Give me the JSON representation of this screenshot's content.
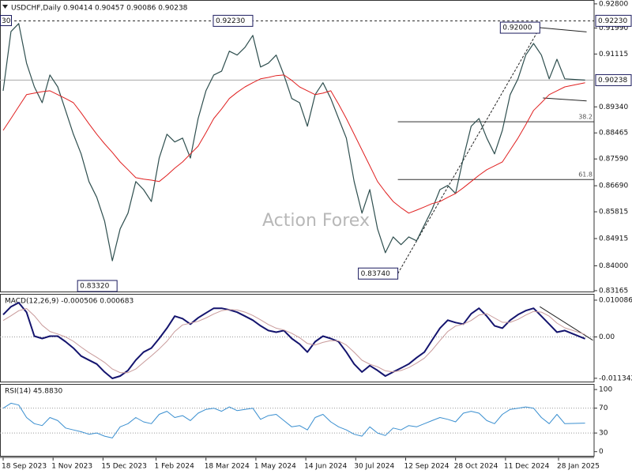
{
  "chart_data": {
    "type": "line",
    "title": "USDCHF,Daily  0.90414 0.90457 0.90086 0.90238",
    "corner_label": "30",
    "watermark": "Action Forex",
    "x": [
      "2023-09-18",
      "2023-09-25",
      "2023-10-02",
      "2023-10-09",
      "2023-10-16",
      "2023-10-23",
      "2023-10-30",
      "2023-11-06",
      "2023-11-13",
      "2023-11-20",
      "2023-11-27",
      "2023-12-04",
      "2023-12-11",
      "2023-12-18",
      "2023-12-25",
      "2024-01-01",
      "2024-01-08",
      "2024-01-15",
      "2024-01-22",
      "2024-01-29",
      "2024-02-05",
      "2024-02-12",
      "2024-02-19",
      "2024-02-26",
      "2024-03-04",
      "2024-03-11",
      "2024-03-18",
      "2024-03-25",
      "2024-04-01",
      "2024-04-08",
      "2024-04-15",
      "2024-04-22",
      "2024-04-29",
      "2024-05-06",
      "2024-05-13",
      "2024-05-20",
      "2024-05-27",
      "2024-06-03",
      "2024-06-10",
      "2024-06-17",
      "2024-06-24",
      "2024-07-01",
      "2024-07-08",
      "2024-07-15",
      "2024-07-22",
      "2024-07-29",
      "2024-08-05",
      "2024-08-12",
      "2024-08-19",
      "2024-08-26",
      "2024-09-02",
      "2024-09-09",
      "2024-09-16",
      "2024-09-23",
      "2024-09-30",
      "2024-10-07",
      "2024-10-14",
      "2024-10-21",
      "2024-10-28",
      "2024-11-04",
      "2024-11-11",
      "2024-11-18",
      "2024-11-25",
      "2024-12-02",
      "2024-12-09",
      "2024-12-16",
      "2024-12-23",
      "2024-12-30",
      "2025-01-06",
      "2025-01-13",
      "2025-01-20",
      "2025-01-27",
      "2025-02-03",
      "2025-02-20"
    ],
    "xticks": [
      {
        "value": "2023-09-18",
        "label": "18 Sep 2023"
      },
      {
        "value": "2023-11-01",
        "label": "1 Nov 2023"
      },
      {
        "value": "2023-12-15",
        "label": "15 Dec 2023"
      },
      {
        "value": "2024-02-01",
        "label": "1 Feb 2024"
      },
      {
        "value": "2024-03-18",
        "label": "18 Mar 2024"
      },
      {
        "value": "2024-05-01",
        "label": "1 May 2024"
      },
      {
        "value": "2024-06-14",
        "label": "14 Jun 2024"
      },
      {
        "value": "2024-07-30",
        "label": "30 Jul 2024"
      },
      {
        "value": "2024-09-12",
        "label": "12 Sep 2024"
      },
      {
        "value": "2024-10-28",
        "label": "28 Oct 2024"
      },
      {
        "value": "2024-12-11",
        "label": "11 Dec 2024"
      },
      {
        "value": "2025-01-28",
        "label": "28 Jan 2025"
      }
    ],
    "panels": [
      {
        "ylim": [
          0.8311,
          0.9293
        ],
        "yticks": [
          {
            "value": 0.928,
            "label": "0.92800"
          },
          {
            "value": 0.9199,
            "label": "0.91990"
          },
          {
            "value": 0.91115,
            "label": "0.91115"
          },
          {
            "value": 0.8934,
            "label": "0.89340"
          },
          {
            "value": 0.88465,
            "label": "0.88465"
          },
          {
            "value": 0.8759,
            "label": "0.87590"
          },
          {
            "value": 0.8669,
            "label": "0.86690"
          },
          {
            "value": 0.85815,
            "label": "0.85815"
          },
          {
            "value": 0.84915,
            "label": "0.84915"
          },
          {
            "value": 0.84,
            "label": "0.84000"
          },
          {
            "value": 0.83165,
            "label": "0.83165"
          }
        ],
        "series": [
          {
            "color": "#2f4f4f",
            "width": 1.2,
            "values": [
              0.8988,
              0.9187,
              0.9214,
              0.9081,
              0.9001,
              0.8948,
              0.9041,
              0.9001,
              0.8922,
              0.8842,
              0.8776,
              0.8683,
              0.863,
              0.855,
              0.8417,
              0.8524,
              0.8577,
              0.8683,
              0.8656,
              0.8616,
              0.8762,
              0.8842,
              0.8816,
              0.8829,
              0.8762,
              0.8895,
              0.8988,
              0.9041,
              0.9054,
              0.9121,
              0.9108,
              0.9134,
              0.9174,
              0.9068,
              0.9081,
              0.9108,
              0.9041,
              0.8962,
              0.8948,
              0.8869,
              0.8975,
              0.9015,
              0.8962,
              0.8895,
              0.8829,
              0.8683,
              0.8577,
              0.8656,
              0.8524,
              0.8444,
              0.8497,
              0.8471,
              0.8497,
              0.8484,
              0.8537,
              0.859,
              0.8656,
              0.867,
              0.8643,
              0.8762,
              0.8869,
              0.8895,
              0.8829,
              0.8776,
              0.8855,
              0.8975,
              0.9028,
              0.9108,
              0.9147,
              0.9108,
              0.9028,
              0.9094,
              0.9028,
              0.90238
            ]
          },
          {
            "color": "#e02020",
            "width": 1,
            "values": [
              0.8855,
              0.8895,
              0.8935,
              0.8975,
              0.898,
              0.8985,
              0.8988,
              0.8975,
              0.8962,
              0.8948,
              0.8914,
              0.8877,
              0.8842,
              0.881,
              0.8781,
              0.8749,
              0.8723,
              0.8696,
              0.8691,
              0.8688,
              0.8683,
              0.8704,
              0.8728,
              0.8749,
              0.8776,
              0.8802,
              0.8847,
              0.8895,
              0.8927,
              0.8962,
              0.8983,
              0.9001,
              0.9015,
              0.9028,
              0.9033,
              0.9039,
              0.9041,
              0.9023,
              0.9001,
              0.8988,
              0.8975,
              0.898,
              0.8988,
              0.8943,
              0.8895,
              0.8842,
              0.8789,
              0.8736,
              0.8683,
              0.8648,
              0.8616,
              0.8595,
              0.8577,
              0.8587,
              0.8598,
              0.8609,
              0.8616,
              0.863,
              0.8643,
              0.8662,
              0.8683,
              0.8704,
              0.8723,
              0.8736,
              0.8749,
              0.8789,
              0.8829,
              0.8874,
              0.8922,
              0.8948,
              0.8975,
              0.8988,
              0.9001,
              0.9015
            ]
          }
        ],
        "hlines": [
          {
            "value": 0.9223,
            "label": "0.92230",
            "style": "dashed"
          },
          {
            "value": 0.90238,
            "label": "0.90238",
            "style": "solid"
          }
        ],
        "fib_levels": [
          {
            "label": "38.2",
            "value": 0.8884,
            "from": "2024-09-05"
          },
          {
            "label": "61.8",
            "value": 0.869,
            "from": "2024-09-05"
          }
        ],
        "annotations": [
          {
            "label": "0.92230",
            "value": 0.9223,
            "x": "2024-04-29"
          },
          {
            "label": "0.83320",
            "value": 0.8332,
            "x": "2023-12-28"
          },
          {
            "label": "0.83740",
            "value": 0.8374,
            "x": "2024-09-05"
          },
          {
            "label": "0.92000",
            "value": 0.92,
            "x": "2025-01-10"
          }
        ],
        "trendlines": [
          {
            "x": [
              "2024-09-05",
              "2025-01-10"
            ],
            "values": [
              0.8374,
              0.92
            ],
            "style": "dashed"
          },
          {
            "x": [
              "2025-01-10",
              "2025-02-21"
            ],
            "values": [
              0.92,
              0.9186
            ],
            "style": "solid"
          },
          {
            "x": [
              "2025-01-14",
              "2025-02-21"
            ],
            "values": [
              0.8964,
              0.8954
            ],
            "style": "solid"
          }
        ]
      },
      {
        "title": "MACD(12,26,9) -0.000506 0.000683",
        "ylim": [
          -0.01246,
          0.01181
        ],
        "yticks": [
          0.010086,
          {
            "value": 0,
            "label": "0.00"
          },
          -0.011342
        ],
        "levels": [
          0
        ],
        "series": [
          {
            "color": "#14146e",
            "width": 2,
            "values": [
              0.00612,
              0.00831,
              0.0094,
              0.00678,
              0.00022,
              -0.00044,
              0.00022,
              0.00022,
              -0.00131,
              -0.00306,
              -0.00525,
              -0.00634,
              -0.00744,
              -0.00962,
              -0.01137,
              -0.01072,
              -0.00919,
              -0.00634,
              -0.00416,
              -0.00306,
              -0.00044,
              0.00241,
              0.00569,
              0.00503,
              0.0035,
              0.00525,
              0.00656,
              0.00787,
              0.00787,
              0.00744,
              0.00678,
              0.00569,
              0.00459,
              0.00306,
              0.00175,
              0.00131,
              0.00175,
              -0.00044,
              -0.00197,
              -0.00416,
              -0.00131,
              0.00022,
              -0.00044,
              -0.00131,
              -0.00416,
              -0.00744,
              -0.00962,
              -0.00787,
              -0.00919,
              -0.01072,
              -0.00962,
              -0.00853,
              -0.00744,
              -0.00569,
              -0.00416,
              -0.00087,
              0.00241,
              0.00459,
              0.00394,
              0.0035,
              0.00634,
              0.00787,
              0.00569,
              0.00306,
              0.00241,
              0.00459,
              0.00612,
              0.00722,
              0.00787,
              0.00569,
              0.0035,
              0.00131,
              0.00175,
              -0.000506
            ]
          },
          {
            "color": "#c89a9a",
            "width": 1,
            "values": [
              0.0045,
              0.0058,
              0.0072,
              0.0078,
              0.0058,
              0.0032,
              0.0015,
              0.0008,
              0.0,
              -0.0012,
              -0.0028,
              -0.0043,
              -0.0056,
              -0.007,
              -0.0088,
              -0.0098,
              -0.0098,
              -0.0088,
              -0.007,
              -0.0052,
              -0.0033,
              -0.0012,
              0.0015,
              0.0033,
              0.0038,
              0.0043,
              0.0052,
              0.0063,
              0.0072,
              0.0075,
              0.0074,
              0.0068,
              0.0059,
              0.0047,
              0.0034,
              0.0024,
              0.0019,
              0.001,
              -0.0002,
              -0.0018,
              -0.0022,
              -0.0015,
              -0.001,
              -0.0011,
              -0.0022,
              -0.0042,
              -0.0064,
              -0.0075,
              -0.0082,
              -0.0093,
              -0.0096,
              -0.0092,
              -0.0084,
              -0.0072,
              -0.0058,
              -0.0036,
              -0.001,
              0.0015,
              0.003,
              0.0035,
              0.0045,
              0.006,
              0.0064,
              0.0052,
              0.004,
              0.004,
              0.0048,
              0.006,
              0.007,
              0.0068,
              0.0057,
              0.0038,
              0.0025,
              0.000683
            ]
          }
        ],
        "trendlines": [
          {
            "x": [
              "2025-01-10",
              "2025-02-27"
            ],
            "values": [
              0.0083,
              -0.0009
            ],
            "style": "solid"
          }
        ]
      },
      {
        "title": "RSI(14) 45.8830",
        "ylim": [
          -8,
          109
        ],
        "yticks": [
          100,
          70,
          30,
          0
        ],
        "levels": [
          70,
          30
        ],
        "series": [
          {
            "color": "#3a8fd0",
            "width": 1,
            "values": [
              70,
              78,
              75,
              55,
              45,
              42,
              55,
              50,
              38,
              35,
              32,
              28,
              30,
              25,
              22,
              40,
              45,
              55,
              48,
              45,
              60,
              65,
              55,
              58,
              50,
              62,
              68,
              70,
              65,
              72,
              66,
              68,
              70,
              52,
              58,
              60,
              50,
              40,
              42,
              35,
              55,
              60,
              48,
              40,
              35,
              28,
              25,
              40,
              30,
              26,
              38,
              35,
              42,
              40,
              45,
              50,
              55,
              52,
              48,
              62,
              65,
              62,
              50,
              45,
              60,
              68,
              70,
              72,
              70,
              55,
              45,
              60,
              45,
              45.883
            ]
          }
        ]
      }
    ]
  }
}
